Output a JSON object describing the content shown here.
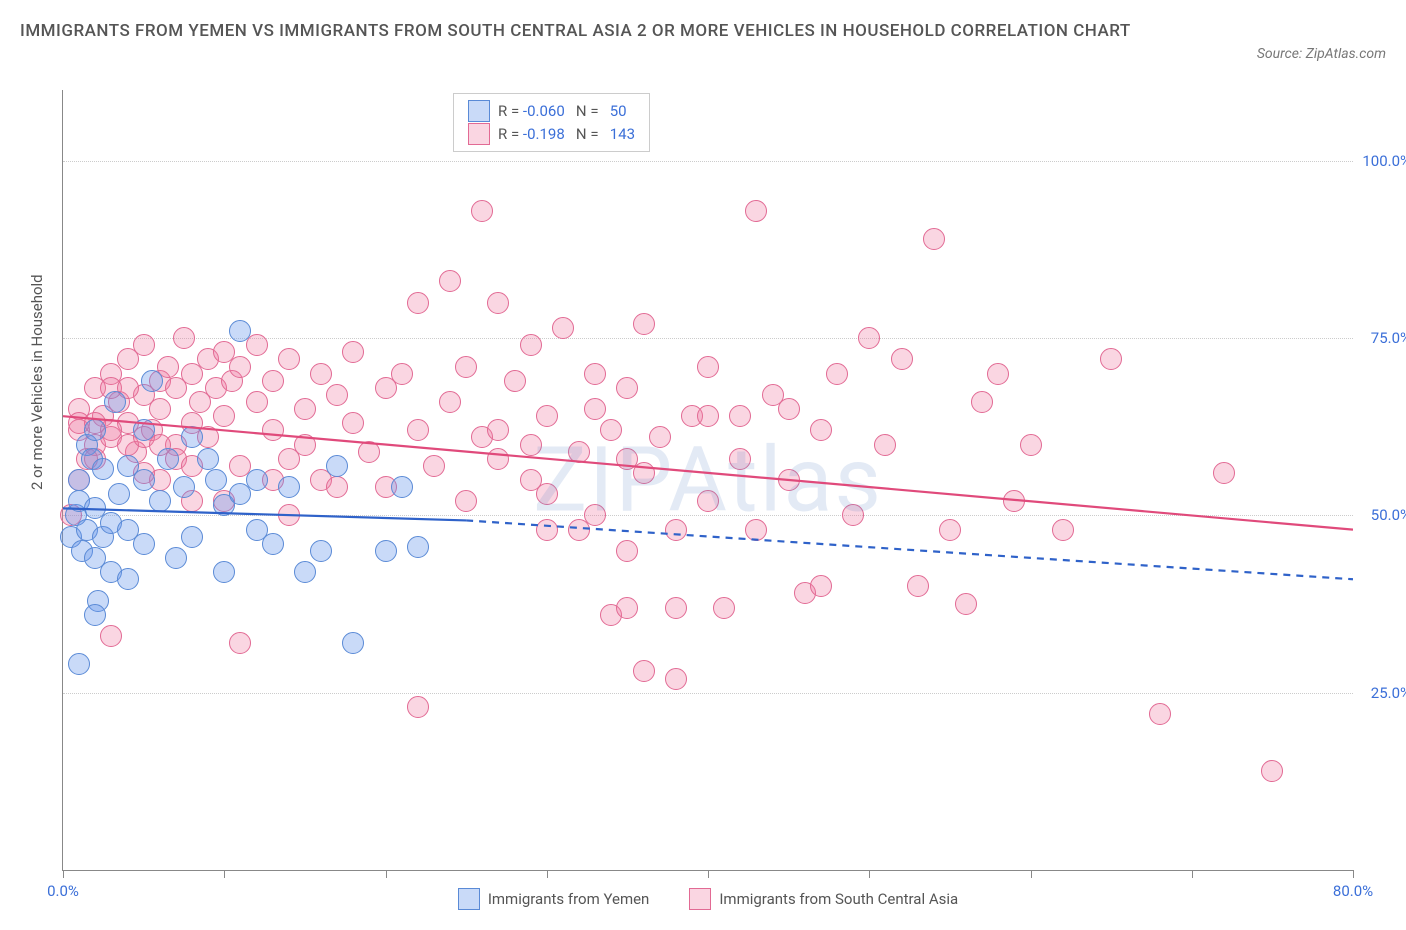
{
  "title": "IMMIGRANTS FROM YEMEN VS IMMIGRANTS FROM SOUTH CENTRAL ASIA 2 OR MORE VEHICLES IN HOUSEHOLD CORRELATION CHART",
  "source": "Source: ZipAtlas.com",
  "y_axis_label": "2 or more Vehicles in Household",
  "watermark": "ZIPAtlas",
  "xlim": [
    0,
    80
  ],
  "ylim": [
    0,
    110
  ],
  "x_ticks": [
    0,
    10,
    20,
    30,
    40,
    50,
    60,
    70,
    80
  ],
  "x_tick_labels": {
    "0": "0.0%",
    "80": "80.0%"
  },
  "y_grid": [
    25,
    50,
    75,
    100
  ],
  "y_tick_labels": {
    "25": "25.0%",
    "50": "50.0%",
    "75": "75.0%",
    "100": "100.0%"
  },
  "x_label_color": "#3b6fd8",
  "y_label_color": "#3b6fd8",
  "grid_color": "#cccccc",
  "axis_color": "#888888",
  "background": "#ffffff",
  "series": [
    {
      "name": "Immigrants from Yemen",
      "color_fill": "rgba(99,148,236,0.35)",
      "color_stroke": "#5a8ad6",
      "trend_color": "#2f62c9",
      "r_value": "-0.060",
      "n_value": "50",
      "trend": {
        "x1": 0,
        "y1": 51,
        "x2": 25,
        "y2": 49.3,
        "x2_ext": 80,
        "y2_ext": 41
      },
      "points": [
        [
          0.5,
          47
        ],
        [
          0.8,
          50
        ],
        [
          1,
          55
        ],
        [
          1,
          52
        ],
        [
          1.2,
          45
        ],
        [
          1.5,
          60
        ],
        [
          1.5,
          48
        ],
        [
          1.8,
          58
        ],
        [
          2,
          62
        ],
        [
          2,
          44
        ],
        [
          2,
          51
        ],
        [
          2.2,
          38
        ],
        [
          2.5,
          56.5
        ],
        [
          2.5,
          47
        ],
        [
          3,
          42
        ],
        [
          3,
          49
        ],
        [
          3.2,
          66
        ],
        [
          3.5,
          53
        ],
        [
          4,
          41
        ],
        [
          4,
          57
        ],
        [
          4,
          48
        ],
        [
          5,
          55
        ],
        [
          5,
          62
        ],
        [
          5,
          46
        ],
        [
          5.5,
          69
        ],
        [
          6,
          52
        ],
        [
          6.5,
          58
        ],
        [
          7,
          44
        ],
        [
          7.5,
          54
        ],
        [
          8,
          61
        ],
        [
          8,
          47
        ],
        [
          9,
          58
        ],
        [
          9.5,
          55
        ],
        [
          10,
          51.5
        ],
        [
          10,
          42
        ],
        [
          11,
          76
        ],
        [
          11,
          53
        ],
        [
          12,
          55
        ],
        [
          12,
          48
        ],
        [
          13,
          46
        ],
        [
          14,
          54
        ],
        [
          15,
          42
        ],
        [
          16,
          45
        ],
        [
          17,
          57
        ],
        [
          18,
          32
        ],
        [
          20,
          45
        ],
        [
          21,
          54
        ],
        [
          22,
          45.5
        ],
        [
          1,
          29
        ],
        [
          2,
          36
        ]
      ]
    },
    {
      "name": "Immigrants from South Central Asia",
      "color_fill": "rgba(238,120,160,0.30)",
      "color_stroke": "#e26a94",
      "trend_color": "#e04a7b",
      "r_value": "-0.198",
      "n_value": "143",
      "trend": {
        "x1": 0,
        "y1": 64,
        "x2": 80,
        "y2": 48
      },
      "points": [
        [
          1,
          62
        ],
        [
          1,
          65
        ],
        [
          1.5,
          58
        ],
        [
          2,
          60
        ],
        [
          2,
          68
        ],
        [
          2.5,
          64
        ],
        [
          3,
          70
        ],
        [
          3,
          61
        ],
        [
          3.5,
          66
        ],
        [
          4,
          63
        ],
        [
          4,
          72
        ],
        [
          4.5,
          59
        ],
        [
          5,
          67
        ],
        [
          5,
          74
        ],
        [
          5.5,
          62
        ],
        [
          6,
          69
        ],
        [
          6,
          65
        ],
        [
          6.5,
          71
        ],
        [
          7,
          60
        ],
        [
          7,
          68
        ],
        [
          7.5,
          75
        ],
        [
          8,
          63
        ],
        [
          8,
          70
        ],
        [
          8.5,
          66
        ],
        [
          9,
          72
        ],
        [
          9,
          61
        ],
        [
          9.5,
          68
        ],
        [
          10,
          73
        ],
        [
          10,
          64
        ],
        [
          10.5,
          69
        ],
        [
          11,
          57
        ],
        [
          11,
          71
        ],
        [
          12,
          66
        ],
        [
          12,
          74
        ],
        [
          13,
          62
        ],
        [
          13,
          69
        ],
        [
          14,
          58
        ],
        [
          14,
          72
        ],
        [
          15,
          65
        ],
        [
          15,
          60
        ],
        [
          16,
          70
        ],
        [
          16,
          55
        ],
        [
          17,
          67
        ],
        [
          18,
          63
        ],
        [
          18,
          73
        ],
        [
          19,
          59
        ],
        [
          20,
          68
        ],
        [
          20,
          54
        ],
        [
          21,
          70
        ],
        [
          22,
          62
        ],
        [
          22,
          80
        ],
        [
          23,
          57
        ],
        [
          24,
          83
        ],
        [
          24,
          66
        ],
        [
          25,
          71
        ],
        [
          25,
          52
        ],
        [
          26,
          61
        ],
        [
          26,
          93
        ],
        [
          27,
          58
        ],
        [
          27,
          80
        ],
        [
          28,
          69
        ],
        [
          29,
          55
        ],
        [
          29,
          74
        ],
        [
          30,
          48
        ],
        [
          30,
          64
        ],
        [
          31,
          76.5
        ],
        [
          32,
          59
        ],
        [
          33,
          50
        ],
        [
          33,
          70
        ],
        [
          34,
          62
        ],
        [
          35,
          45
        ],
        [
          35,
          68
        ],
        [
          36,
          56
        ],
        [
          36,
          77
        ],
        [
          37,
          61
        ],
        [
          38,
          27
        ],
        [
          39,
          64
        ],
        [
          40,
          52
        ],
        [
          40,
          71
        ],
        [
          41,
          37
        ],
        [
          42,
          58
        ],
        [
          43,
          93
        ],
        [
          43,
          48
        ],
        [
          44,
          67
        ],
        [
          45,
          55
        ],
        [
          46,
          39
        ],
        [
          47,
          62
        ],
        [
          48,
          70
        ],
        [
          49,
          50
        ],
        [
          50,
          75
        ],
        [
          51,
          60
        ],
        [
          52,
          72
        ],
        [
          53,
          40
        ],
        [
          54,
          89
        ],
        [
          55,
          48
        ],
        [
          56,
          37.5
        ],
        [
          57,
          66
        ],
        [
          58,
          70
        ],
        [
          59,
          52
        ],
        [
          60,
          60
        ],
        [
          22,
          23
        ],
        [
          11,
          32
        ],
        [
          3,
          33
        ],
        [
          0.5,
          50
        ],
        [
          1,
          55
        ],
        [
          2,
          58
        ],
        [
          6,
          55
        ],
        [
          10,
          52
        ],
        [
          14,
          50
        ],
        [
          8,
          52
        ],
        [
          5,
          56
        ],
        [
          30,
          53
        ],
        [
          34,
          36
        ],
        [
          36,
          28
        ],
        [
          45,
          65
        ],
        [
          47,
          40
        ],
        [
          33,
          65
        ],
        [
          29,
          60
        ],
        [
          27,
          62
        ],
        [
          35,
          58
        ],
        [
          38,
          48
        ],
        [
          13,
          55
        ],
        [
          17,
          54
        ],
        [
          42,
          64
        ],
        [
          40,
          64
        ],
        [
          32,
          48
        ],
        [
          62,
          48
        ],
        [
          65,
          72
        ],
        [
          68,
          22
        ],
        [
          72,
          56
        ],
        [
          35,
          37
        ],
        [
          38,
          37
        ],
        [
          75,
          14
        ],
        [
          1,
          63
        ],
        [
          2,
          63
        ],
        [
          3,
          62
        ],
        [
          4,
          60
        ],
        [
          5,
          61
        ],
        [
          6,
          60
        ],
        [
          7,
          58
        ],
        [
          8,
          57
        ],
        [
          3,
          68
        ],
        [
          4,
          68
        ]
      ]
    }
  ],
  "marker_radius": 10,
  "marker_stroke_width": 1.2,
  "trend_line_width": 2.2,
  "title_fontsize": 17,
  "label_fontsize": 15,
  "tick_fontsize": 15
}
